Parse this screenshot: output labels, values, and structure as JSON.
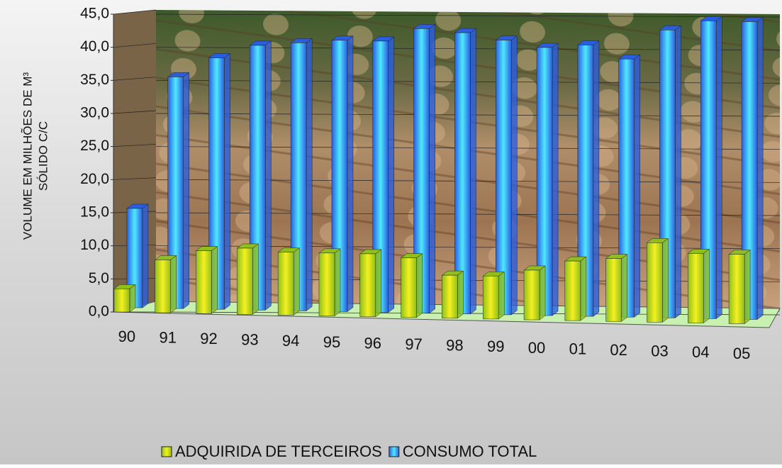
{
  "chart_data": {
    "type": "bar3d",
    "y_label": [
      "VOLUME EM MILHÕES DE M³",
      "SÓLIDO C/C"
    ],
    "categories": [
      "90",
      "91",
      "92",
      "93",
      "94",
      "95",
      "96",
      "97",
      "98",
      "99",
      "00",
      "01",
      "02",
      "03",
      "04",
      "05"
    ],
    "series": [
      {
        "name": "ADQUIRIDA DE TERCEIROS",
        "color": "#8fbf1a",
        "values": [
          3.5,
          8,
          9.5,
          10,
          9.5,
          9.5,
          9.5,
          9,
          6.5,
          6.5,
          7.5,
          9,
          9.5,
          12,
          10.5,
          10.5
        ]
      },
      {
        "name": "CONSUMO TOTAL",
        "color": "#2a5ee0",
        "values": [
          15,
          35,
          38,
          40,
          40.5,
          41,
          41,
          43,
          42.5,
          41.5,
          40.5,
          41,
          39,
          43.5,
          45,
          45
        ]
      }
    ],
    "ylim": [
      0,
      45
    ],
    "yticks": [
      {
        "value": 0,
        "label": "0,0"
      },
      {
        "value": 5,
        "label": "5,0"
      },
      {
        "value": 10,
        "label": "10,0"
      },
      {
        "value": 15,
        "label": "15,0"
      },
      {
        "value": 20,
        "label": "20,0"
      },
      {
        "value": 25,
        "label": "25,0"
      },
      {
        "value": 30,
        "label": "30,0"
      },
      {
        "value": 35,
        "label": "35,0"
      },
      {
        "value": 40,
        "label": "40,0"
      },
      {
        "value": 45,
        "label": "45,0"
      }
    ],
    "grid": true
  }
}
